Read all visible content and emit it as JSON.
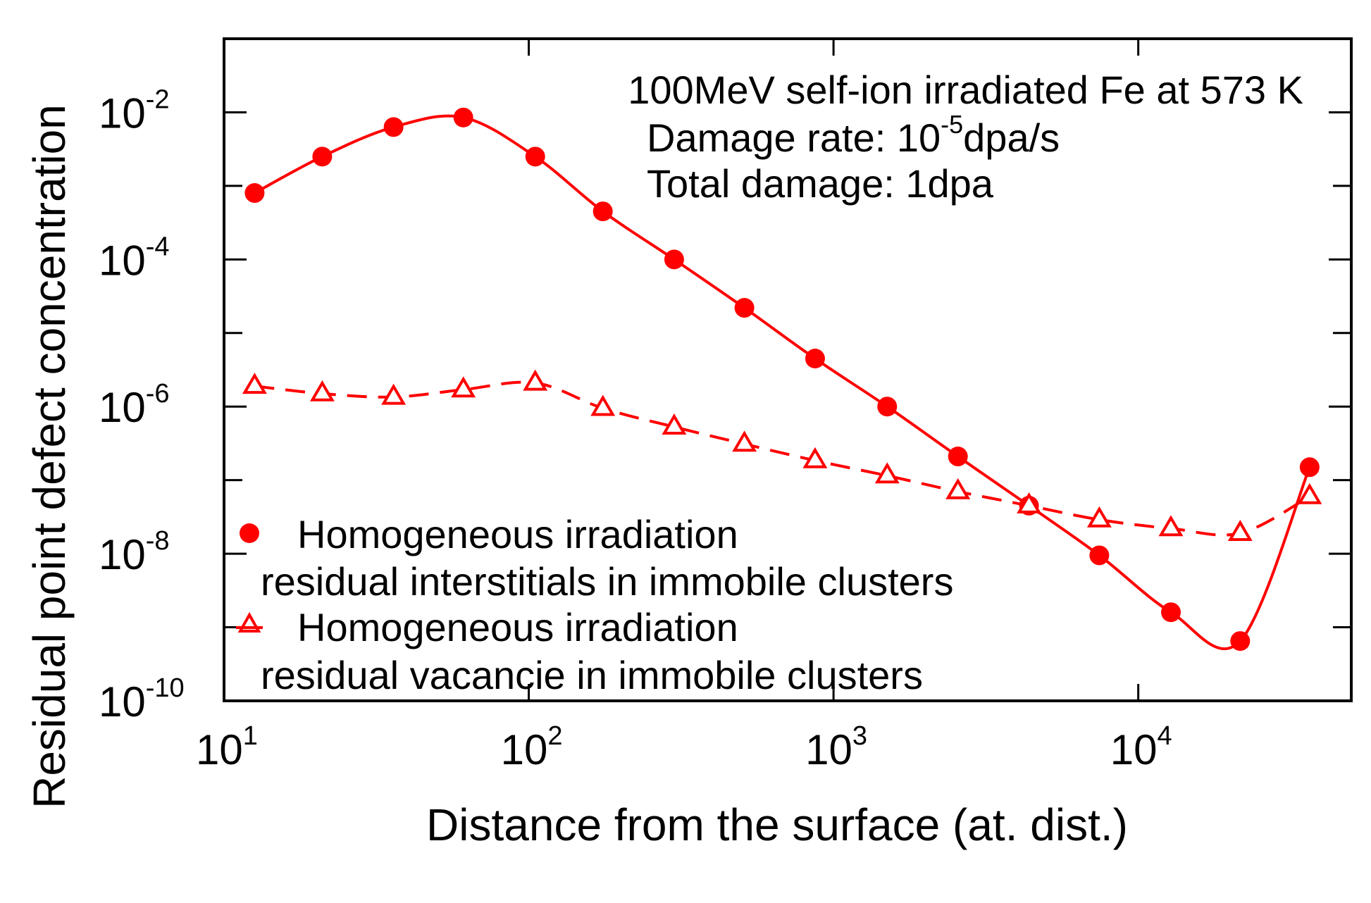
{
  "chart_data": {
    "type": "line",
    "xscale": "log",
    "yscale": "log",
    "xlim": [
      10,
      50000
    ],
    "ylim": [
      1e-10,
      0.1
    ],
    "xlabel": "Distance from the surface (at. dist.)",
    "ylabel": "Residual point defect concentration",
    "x_tick_labels": [
      {
        "value": 10,
        "base": "10",
        "exp": "1"
      },
      {
        "value": 100,
        "base": "10",
        "exp": "2"
      },
      {
        "value": 1000,
        "base": "10",
        "exp": "3"
      },
      {
        "value": 10000,
        "base": "10",
        "exp": "4"
      }
    ],
    "y_tick_labels": [
      {
        "value": 0.01,
        "base": "10",
        "exp": "-2"
      },
      {
        "value": 0.0001,
        "base": "10",
        "exp": "-4"
      },
      {
        "value": 1e-06,
        "base": "10",
        "exp": "-6"
      },
      {
        "value": 1e-08,
        "base": "10",
        "exp": "-8"
      },
      {
        "value": 1e-10,
        "base": "10",
        "exp": "-10"
      }
    ],
    "annotations": {
      "line1": "100MeV self-ion irradiated Fe at 573 K",
      "line2_prefix": "Damage rate: 10",
      "line2_exp": "-5",
      "line2_suffix": "dpa/s",
      "line3": "Total damage: 1dpa"
    },
    "series": [
      {
        "name": "interstitials",
        "legend_line1": "Homogeneous irradiation",
        "legend_line2": "residual interstitials in immobile clusters",
        "marker": "circle",
        "line_style": "solid",
        "color": "#ff0000",
        "x": [
          12.6,
          21,
          36,
          61,
          105,
          175,
          300,
          510,
          870,
          1500,
          2560,
          4380,
          7450,
          12800,
          21600,
          36500
        ],
        "y": [
          0.0008,
          0.0025,
          0.0063,
          0.0085,
          0.0025,
          0.00045,
          0.0001,
          2.2e-05,
          4.5e-06,
          1e-06,
          2.1e-07,
          4.5e-08,
          9.5e-09,
          1.6e-09,
          6.5e-10,
          1.5e-07
        ]
      },
      {
        "name": "vacancies",
        "legend_line1": "Homogeneous irradiation",
        "legend_line2": "residual vacancie in immobile clusters",
        "marker": "triangle",
        "line_style": "dashed",
        "color": "#ff0000",
        "x": [
          12.6,
          21,
          36,
          61,
          105,
          175,
          300,
          510,
          870,
          1500,
          2560,
          4380,
          7450,
          12800,
          21600,
          36500
        ],
        "y": [
          1.9e-06,
          1.5e-06,
          1.35e-06,
          1.7e-06,
          2.1e-06,
          9.5e-07,
          5.3e-07,
          3.1e-07,
          1.85e-07,
          1.15e-07,
          7e-08,
          4.5e-08,
          2.9e-08,
          2.2e-08,
          1.9e-08,
          6e-08
        ]
      }
    ]
  }
}
